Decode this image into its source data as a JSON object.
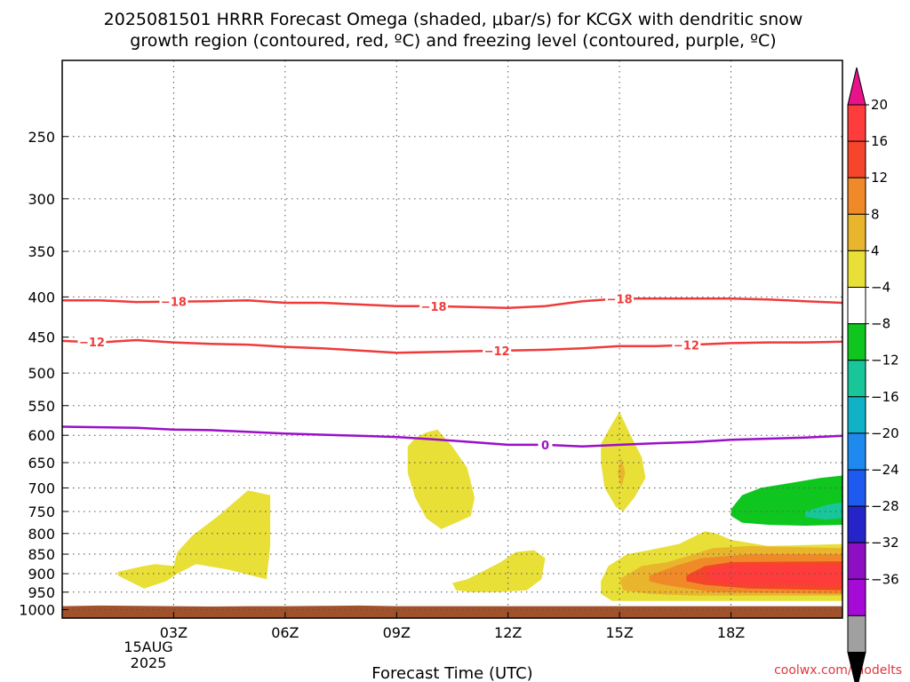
{
  "title_line1": "2025081501 HRRR Forecast Omega (shaded, μbar/s) for KCGX with dendritic snow",
  "title_line2": "growth region (contoured, red, ºC) and freezing level (contoured, purple, ºC)",
  "xlabel": "Forecast Time (UTC)",
  "credit": "coolwx.com/modelts",
  "date_label_line1": "15AUG",
  "date_label_line2": "2025",
  "chart_data": {
    "type": "time-height contour",
    "x_ticks": [
      "03Z",
      "06Z",
      "09Z",
      "12Z",
      "15Z",
      "18Z"
    ],
    "x_tick_hours": [
      3,
      6,
      9,
      12,
      15,
      18
    ],
    "xlim_hours": [
      0,
      21
    ],
    "y_ticks": [
      250,
      300,
      350,
      400,
      450,
      500,
      550,
      600,
      650,
      700,
      750,
      800,
      850,
      900,
      950,
      1000
    ],
    "ylim_hpa": [
      200,
      1025
    ],
    "y_scale": "log-pressure (inverted)",
    "grid": true,
    "colorbar_ticks": [
      "20",
      "16",
      "12",
      "8",
      "4",
      "−4",
      "−8",
      "−12",
      "−16",
      "−20",
      "−24",
      "−28",
      "−32",
      "−36"
    ],
    "colorbar_colors": [
      "#e8138a",
      "#ff3c3c",
      "#f5452a",
      "#f08a28",
      "#e9b52d",
      "#e8df37",
      "#ffffff",
      "#0fc61e",
      "#18c69a",
      "#12b2c6",
      "#1e8aef",
      "#1e5aef",
      "#2424c8",
      "#8d0fc2",
      "#a60ad7",
      "#a0a0a0",
      "#000000"
    ],
    "contours": [
      {
        "name": "-18",
        "color": "#ef3b3b",
        "points": [
          [
            0,
            404
          ],
          [
            1,
            404
          ],
          [
            2,
            406
          ],
          [
            4,
            405
          ],
          [
            5,
            404
          ],
          [
            6,
            407
          ],
          [
            7,
            407
          ],
          [
            8,
            409
          ],
          [
            9,
            411
          ],
          [
            10,
            411
          ],
          [
            11,
            412
          ],
          [
            12,
            413
          ],
          [
            13,
            411
          ],
          [
            14,
            405
          ],
          [
            15,
            402
          ],
          [
            16,
            402
          ],
          [
            17,
            402
          ],
          [
            18,
            402
          ],
          [
            19,
            403
          ],
          [
            20,
            405
          ],
          [
            21,
            407
          ]
        ]
      },
      {
        "name": "-12",
        "color": "#ef3b3b",
        "points": [
          [
            0,
            455
          ],
          [
            1,
            457
          ],
          [
            2,
            454
          ],
          [
            3,
            457
          ],
          [
            4,
            459
          ],
          [
            5,
            460
          ],
          [
            6,
            463
          ],
          [
            7,
            465
          ],
          [
            8,
            468
          ],
          [
            9,
            471
          ],
          [
            10,
            470
          ],
          [
            11,
            469
          ],
          [
            12,
            468
          ],
          [
            13,
            467
          ],
          [
            14,
            465
          ],
          [
            15,
            462
          ],
          [
            16,
            462
          ],
          [
            17,
            460
          ],
          [
            18,
            458
          ],
          [
            19,
            457
          ],
          [
            20,
            457
          ],
          [
            21,
            456
          ]
        ]
      },
      {
        "name": "0",
        "color": "#9b0fc8",
        "points": [
          [
            0,
            585
          ],
          [
            2,
            587
          ],
          [
            3,
            590
          ],
          [
            4,
            591
          ],
          [
            6,
            597
          ],
          [
            8,
            601
          ],
          [
            9,
            603
          ],
          [
            10,
            607
          ],
          [
            11,
            612
          ],
          [
            12,
            617
          ],
          [
            13,
            617
          ],
          [
            14,
            620
          ],
          [
            15,
            617
          ],
          [
            16,
            614
          ],
          [
            17,
            612
          ],
          [
            18,
            608
          ],
          [
            19,
            606
          ],
          [
            20,
            604
          ],
          [
            21,
            601
          ]
        ]
      }
    ],
    "omega_regions": [
      {
        "value": 4,
        "color": "#e8df37",
        "points": [
          [
            1.5,
            895
          ],
          [
            2.2,
            880
          ],
          [
            2.5,
            875
          ],
          [
            3.0,
            880
          ],
          [
            3.1,
            845
          ],
          [
            3.5,
            805
          ],
          [
            4.2,
            760
          ],
          [
            5.0,
            705
          ],
          [
            5.6,
            715
          ],
          [
            5.6,
            830
          ],
          [
            5.5,
            915
          ],
          [
            4.5,
            890
          ],
          [
            3.6,
            875
          ],
          [
            3.1,
            900
          ],
          [
            2.8,
            920
          ],
          [
            2.2,
            940
          ],
          [
            1.5,
            905
          ]
        ]
      },
      {
        "value": 4,
        "color": "#e8df37",
        "points": [
          [
            9.3,
            620
          ],
          [
            9.5,
            605
          ],
          [
            9.8,
            595
          ],
          [
            10.1,
            590
          ],
          [
            10.5,
            620
          ],
          [
            10.9,
            660
          ],
          [
            11.1,
            720
          ],
          [
            11.0,
            760
          ],
          [
            10.6,
            775
          ],
          [
            10.2,
            790
          ],
          [
            9.8,
            765
          ],
          [
            9.5,
            720
          ],
          [
            9.3,
            670
          ]
        ]
      },
      {
        "value": 4,
        "color": "#e8df37",
        "points": [
          [
            10.5,
            925
          ],
          [
            10.9,
            915
          ],
          [
            11.3,
            895
          ],
          [
            11.8,
            870
          ],
          [
            12.2,
            845
          ],
          [
            12.7,
            840
          ],
          [
            13.0,
            860
          ],
          [
            12.9,
            915
          ],
          [
            12.5,
            945
          ],
          [
            11.7,
            950
          ],
          [
            11.0,
            950
          ],
          [
            10.6,
            945
          ]
        ]
      },
      {
        "value": 4,
        "color": "#e8df37",
        "points": [
          [
            15.0,
            560
          ],
          [
            15.3,
            600
          ],
          [
            15.6,
            640
          ],
          [
            15.7,
            680
          ],
          [
            15.4,
            720
          ],
          [
            15.1,
            750
          ],
          [
            14.9,
            740
          ],
          [
            14.6,
            700
          ],
          [
            14.5,
            650
          ],
          [
            14.5,
            615
          ],
          [
            14.8,
            580
          ]
        ]
      },
      {
        "value": 8,
        "color": "#e9b52d",
        "points": [
          [
            15.05,
            640
          ],
          [
            15.15,
            670
          ],
          [
            15.05,
            700
          ],
          [
            14.95,
            670
          ]
        ]
      },
      {
        "value": 4,
        "color": "#e8df37",
        "points": [
          [
            14.5,
            920
          ],
          [
            14.7,
            880
          ],
          [
            15.2,
            850
          ],
          [
            15.8,
            840
          ],
          [
            16.6,
            825
          ],
          [
            17.3,
            795
          ],
          [
            17.6,
            800
          ],
          [
            18.0,
            815
          ],
          [
            19.0,
            830
          ],
          [
            21.0,
            825
          ],
          [
            21.0,
            975
          ],
          [
            17.0,
            975
          ],
          [
            15.5,
            975
          ],
          [
            14.8,
            975
          ],
          [
            14.5,
            955
          ]
        ]
      },
      {
        "value": 8,
        "color": "#e9b52d",
        "points": [
          [
            15.0,
            915
          ],
          [
            15.6,
            880
          ],
          [
            16.3,
            870
          ],
          [
            17.0,
            850
          ],
          [
            17.5,
            835
          ],
          [
            18.5,
            830
          ],
          [
            21.0,
            835
          ],
          [
            21.0,
            960
          ],
          [
            17.0,
            960
          ],
          [
            15.8,
            955
          ],
          [
            15.1,
            945
          ]
        ]
      },
      {
        "value": 12,
        "color": "#f08a28",
        "points": [
          [
            15.8,
            905
          ],
          [
            16.5,
            880
          ],
          [
            17.2,
            860
          ],
          [
            18.5,
            850
          ],
          [
            21.0,
            850
          ],
          [
            21.0,
            955
          ],
          [
            17.5,
            950
          ],
          [
            16.2,
            930
          ],
          [
            15.8,
            920
          ]
        ]
      },
      {
        "value": 16,
        "color": "#f5452a",
        "points": [
          [
            16.8,
            905
          ],
          [
            17.3,
            880
          ],
          [
            18.0,
            870
          ],
          [
            21.0,
            868
          ],
          [
            21.0,
            945
          ],
          [
            18.5,
            940
          ],
          [
            17.3,
            930
          ],
          [
            16.8,
            920
          ]
        ]
      },
      {
        "value": 20,
        "color": "#ff3c3c",
        "points": [
          [
            17.3,
            905
          ],
          [
            17.5,
            885
          ],
          [
            18.0,
            878
          ],
          [
            21.0,
            878
          ],
          [
            21.0,
            930
          ],
          [
            18.0,
            928
          ],
          [
            17.5,
            920
          ]
        ]
      },
      {
        "value": -4,
        "color": "#0fc61e",
        "points": [
          [
            18.0,
            745
          ],
          [
            18.3,
            715
          ],
          [
            18.8,
            700
          ],
          [
            19.6,
            690
          ],
          [
            20.4,
            680
          ],
          [
            21.0,
            675
          ],
          [
            21.0,
            780
          ],
          [
            20.0,
            782
          ],
          [
            19.0,
            780
          ],
          [
            18.3,
            775
          ],
          [
            18.0,
            760
          ]
        ]
      },
      {
        "value": -8,
        "color": "#18c69a",
        "points": [
          [
            20.0,
            750
          ],
          [
            20.6,
            735
          ],
          [
            21.0,
            730
          ],
          [
            21.0,
            765
          ],
          [
            20.5,
            768
          ],
          [
            20.0,
            762
          ]
        ]
      }
    ],
    "terrain": {
      "color": "#a0522d",
      "top_hpa": [
        [
          0,
          990
        ],
        [
          1,
          988
        ],
        [
          2,
          989
        ],
        [
          3,
          990
        ],
        [
          4,
          991
        ],
        [
          5,
          990
        ],
        [
          6,
          990
        ],
        [
          7,
          989
        ],
        [
          8,
          988
        ],
        [
          9,
          990
        ],
        [
          21,
          990
        ]
      ]
    }
  }
}
